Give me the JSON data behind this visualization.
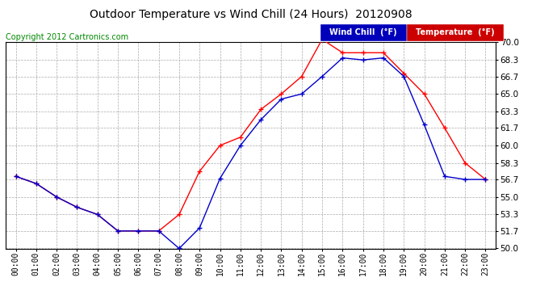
{
  "title": "Outdoor Temperature vs Wind Chill (24 Hours)  20120908",
  "copyright": "Copyright 2012 Cartronics.com",
  "background_color": "#ffffff",
  "plot_bg_color": "#ffffff",
  "grid_color": "#aaaaaa",
  "hours": [
    "00:00",
    "01:00",
    "02:00",
    "03:00",
    "04:00",
    "05:00",
    "06:00",
    "07:00",
    "08:00",
    "09:00",
    "10:00",
    "11:00",
    "12:00",
    "13:00",
    "14:00",
    "15:00",
    "16:00",
    "17:00",
    "18:00",
    "19:00",
    "20:00",
    "21:00",
    "22:00",
    "23:00"
  ],
  "temperature": [
    57.0,
    56.3,
    55.0,
    54.0,
    53.3,
    51.7,
    51.7,
    51.7,
    53.3,
    57.5,
    60.0,
    60.8,
    63.5,
    65.0,
    66.7,
    70.3,
    69.0,
    69.0,
    69.0,
    67.0,
    65.0,
    61.7,
    58.3,
    56.7
  ],
  "wind_chill": [
    57.0,
    56.3,
    55.0,
    54.0,
    53.3,
    51.7,
    51.7,
    51.7,
    50.0,
    52.0,
    56.8,
    60.0,
    62.5,
    64.5,
    65.0,
    66.7,
    68.5,
    68.3,
    68.5,
    66.7,
    62.0,
    57.0,
    56.7,
    56.7
  ],
  "temp_color": "#ff0000",
  "wind_color": "#0000cc",
  "legend_wind_bg": "#0000bb",
  "legend_temp_bg": "#cc0000",
  "ylim": [
    50.0,
    70.0
  ],
  "yticks": [
    50.0,
    51.7,
    53.3,
    55.0,
    56.7,
    58.3,
    60.0,
    61.7,
    63.3,
    65.0,
    66.7,
    68.3,
    70.0
  ]
}
